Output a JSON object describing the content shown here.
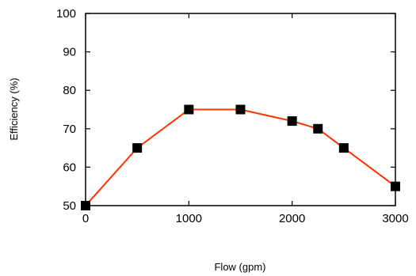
{
  "chart_data": {
    "type": "line",
    "title": "",
    "xlabel": "Flow (gpm)",
    "ylabel": "Efficiency (%)",
    "xlim": [
      0,
      3000
    ],
    "ylim": [
      50,
      100
    ],
    "xticks": [
      0,
      1000,
      2000,
      3000
    ],
    "yticks": [
      50,
      60,
      70,
      80,
      90,
      100
    ],
    "grid": false,
    "legend": "none",
    "series": [
      {
        "x": [
          0,
          500,
          1000,
          1500,
          2000,
          2250,
          2500,
          3000
        ],
        "y": [
          50,
          65,
          75,
          75,
          72,
          70,
          65,
          55
        ],
        "line_color": "#ff3300",
        "marker_color": "#000000",
        "marker": "square"
      }
    ]
  }
}
